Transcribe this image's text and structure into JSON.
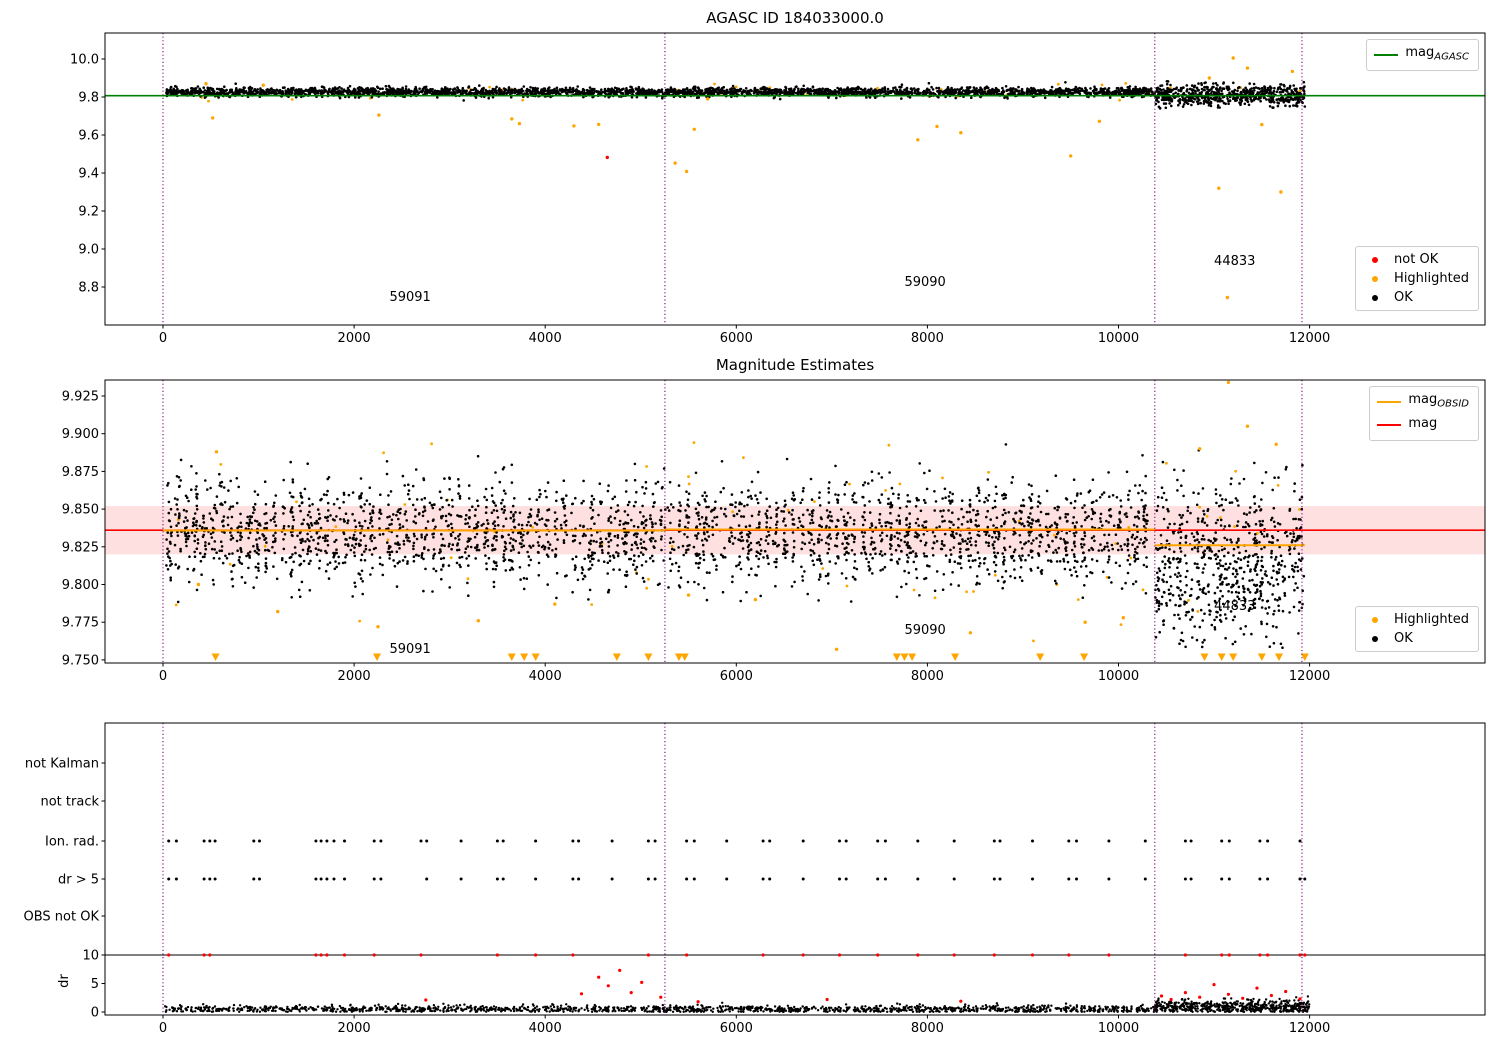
{
  "colors": {
    "ok": "#000000",
    "highlighted": "#ffa500",
    "not_ok": "#ff0000",
    "agasc_line": "#008000",
    "mag_line": "#ff0000",
    "obsid_line": "#ffa500",
    "band_color": "#ff0000",
    "band_alpha": 0.12,
    "vline": "#800080",
    "spine": "#000000"
  },
  "chart_data": [
    {
      "type": "scatter",
      "title": "AGASC ID 184033000.0",
      "xtick_vals": [
        0,
        2000,
        4000,
        6000,
        8000,
        10000,
        12000
      ],
      "xtick_labels": [
        "0",
        "2000",
        "4000",
        "6000",
        "8000",
        "10000",
        "12000"
      ],
      "ytick_vals": [
        10.0,
        9.8,
        9.6,
        9.4,
        9.2,
        9.0,
        8.8
      ],
      "ytick_labels": [
        "10.0",
        "9.8",
        "9.6",
        "9.4",
        "9.2",
        "9.0",
        "8.8"
      ],
      "xlim": [
        -630,
        13835
      ],
      "ylim": [
        8.6,
        10.14
      ],
      "agasc_mag_line": 9.807,
      "vlines": [
        0,
        5253,
        10380,
        11920
      ],
      "annotations": [
        {
          "text": "59091",
          "x": 2370,
          "y": 8.715
        },
        {
          "text": "59090",
          "x": 7760,
          "y": 8.797
        },
        {
          "text": "44833",
          "x": 11000,
          "y": 8.905
        }
      ],
      "legend_top": [
        {
          "label_main": "mag",
          "label_sub": "AGASC",
          "type": "line",
          "color": "#008000"
        }
      ],
      "legend_bottom": [
        {
          "label": "not OK",
          "type": "dot",
          "color": "#ff0000"
        },
        {
          "label": "Highlighted",
          "type": "dot",
          "color": "#ffa500"
        },
        {
          "label": "OK",
          "type": "dot",
          "color": "#000000"
        }
      ],
      "ok_series": [
        {
          "x0": 30,
          "x1": 10380,
          "n": 3000,
          "mean": 9.826,
          "std": 0.012,
          "ymin": 9.778,
          "ymax": 9.885,
          "cluster": false
        },
        {
          "x0": 10380,
          "x1": 11950,
          "n": 650,
          "mean": 9.81,
          "std": 0.028,
          "ymin": 9.74,
          "ymax": 9.96,
          "cluster": false
        }
      ],
      "highlighted_band": {
        "x0": 30,
        "x1": 11950,
        "n": 55,
        "mean": 9.824,
        "std": 0.02,
        "ymin": 9.765,
        "ymax": 9.9
      },
      "highlighted_points": [
        [
          450,
          9.87
        ],
        [
          520,
          9.69
        ],
        [
          1050,
          9.862
        ],
        [
          2260,
          9.705
        ],
        [
          3650,
          9.685
        ],
        [
          3730,
          9.66
        ],
        [
          4300,
          9.648
        ],
        [
          4560,
          9.656
        ],
        [
          5360,
          9.452
        ],
        [
          5480,
          9.408
        ],
        [
          5560,
          9.63
        ],
        [
          5700,
          9.79
        ],
        [
          7900,
          9.575
        ],
        [
          8100,
          9.645
        ],
        [
          8350,
          9.612
        ],
        [
          9500,
          9.49
        ],
        [
          9800,
          9.672
        ],
        [
          10950,
          9.9
        ],
        [
          11050,
          9.32
        ],
        [
          11200,
          10.005
        ],
        [
          11140,
          8.745
        ],
        [
          11350,
          9.952
        ],
        [
          11500,
          9.655
        ],
        [
          11700,
          9.3
        ],
        [
          11820,
          9.935
        ]
      ],
      "not_ok_points": [
        [
          4650,
          9.482
        ]
      ]
    },
    {
      "type": "scatter",
      "title": "Magnitude Estimates",
      "xtick_vals": [
        0,
        2000,
        4000,
        6000,
        8000,
        10000,
        12000
      ],
      "xtick_labels": [
        "0",
        "2000",
        "4000",
        "6000",
        "8000",
        "10000",
        "12000"
      ],
      "ytick_vals": [
        9.925,
        9.9,
        9.875,
        9.85,
        9.825,
        9.8,
        9.775,
        9.75
      ],
      "ytick_labels": [
        "9.925",
        "9.900",
        "9.875",
        "9.850",
        "9.825",
        "9.800",
        "9.775",
        "9.750"
      ],
      "xlim": [
        -630,
        13835
      ],
      "ylim": [
        9.7478,
        9.9356
      ],
      "mag_line": 9.836,
      "band": {
        "lo": 9.82,
        "hi": 9.852
      },
      "obsid_segments": [
        {
          "x0": 0,
          "x1": 5253,
          "y": 9.8358
        },
        {
          "x0": 5253,
          "x1": 10380,
          "y": 9.8365
        },
        {
          "x0": 10380,
          "x1": 11950,
          "y": 9.826
        }
      ],
      "vlines": [
        0,
        5253,
        10380,
        11920
      ],
      "annotations": [
        {
          "text": "59091",
          "x": 2370,
          "y": 9.7535
        },
        {
          "text": "59090",
          "x": 7760,
          "y": 9.766
        },
        {
          "text": "44833",
          "x": 11000,
          "y": 9.7815
        }
      ],
      "legend_top": [
        {
          "label_main": "mag",
          "label_sub": "OBSID",
          "type": "line",
          "color": "#ffa500"
        },
        {
          "label_main": "mag",
          "label_sub": "",
          "type": "line",
          "color": "#ff0000"
        }
      ],
      "legend_bottom": [
        {
          "label": "Highlighted",
          "type": "dot",
          "color": "#ffa500"
        },
        {
          "label": "OK",
          "type": "dot",
          "color": "#000000"
        }
      ],
      "ok_series": [
        {
          "x0": 20,
          "x1": 10380,
          "n": 2700,
          "mean": 9.8345,
          "std": 0.0175,
          "ymin": 9.788,
          "ymax": 9.893,
          "cluster": true,
          "cluster_spacing": 92,
          "cluster_sigma": 19
        },
        {
          "x0": 10380,
          "x1": 11950,
          "n": 650,
          "mean": 9.812,
          "std": 0.027,
          "ymin": 9.758,
          "ymax": 9.9,
          "cluster": true,
          "cluster_spacing": 60,
          "cluster_sigma": 16
        }
      ],
      "highlighted_band": {
        "x0": 20,
        "x1": 11950,
        "n": 70,
        "mean": 9.83,
        "std": 0.035,
        "ymin": 9.762,
        "ymax": 9.9
      },
      "highlighted_points": [
        [
          560,
          9.888
        ],
        [
          370,
          9.8
        ],
        [
          11150,
          9.934
        ],
        [
          7050,
          9.757
        ],
        [
          2250,
          9.772
        ],
        [
          5500,
          9.793
        ],
        [
          8450,
          9.768
        ],
        [
          9650,
          9.775
        ],
        [
          10050,
          9.778
        ],
        [
          6200,
          9.79
        ],
        [
          1200,
          9.782
        ],
        [
          3300,
          9.776
        ],
        [
          4100,
          9.787
        ],
        [
          11650,
          9.893
        ],
        [
          11350,
          9.905
        ],
        [
          10850,
          9.89
        ]
      ],
      "triangles_x": [
        550,
        2240,
        3650,
        3780,
        3900,
        4750,
        5080,
        5400,
        5460,
        7680,
        7760,
        7840,
        8290,
        9180,
        9640,
        10900,
        11080,
        11200,
        11500,
        11680,
        11950
      ],
      "not_ok_points": []
    },
    {
      "type": "scatter",
      "title": "",
      "xtick_vals": [
        0,
        2000,
        4000,
        6000,
        8000,
        10000,
        12000
      ],
      "xtick_labels": [
        "0",
        "2000",
        "4000",
        "6000",
        "8000",
        "10000",
        "12000"
      ],
      "rows": [
        "not Kalman",
        "not track",
        "Ion. rad.",
        "dr > 5",
        "OBS not OK"
      ],
      "dr_axis_label": "dr",
      "dr_tick_vals": [
        10,
        5,
        0
      ],
      "dr_tick_labels": [
        "10",
        "5",
        "0"
      ],
      "dr_cap_line": 10,
      "vlines": [
        0,
        5253,
        10380,
        11920
      ],
      "ion_rad_x": [
        60,
        140,
        430,
        490,
        545,
        950,
        1010,
        1600,
        1655,
        1715,
        1790,
        1900,
        2210,
        2280,
        2700,
        2760,
        3120,
        3500,
        3560,
        3900,
        4290,
        4350,
        4700,
        5080,
        5150,
        5480,
        5560,
        5900,
        6280,
        6350,
        6700,
        7080,
        7150,
        7480,
        7560,
        7900,
        8280,
        8700,
        8760,
        9100,
        9480,
        9560,
        9900,
        10280,
        10700,
        10760,
        11080,
        11160,
        11480,
        11560,
        11900
      ],
      "dr_gt5_x": [
        60,
        140,
        430,
        490,
        545,
        950,
        1010,
        1600,
        1655,
        1715,
        1790,
        1900,
        2210,
        2280,
        2760,
        3120,
        3500,
        3560,
        3900,
        4290,
        4350,
        4700,
        5080,
        5150,
        5480,
        5560,
        5900,
        6280,
        6350,
        6700,
        7080,
        7150,
        7480,
        7560,
        7900,
        8280,
        8700,
        8760,
        9100,
        9480,
        9560,
        9900,
        10280,
        10700,
        10760,
        11080,
        11160,
        11480,
        11560,
        11900,
        11950
      ],
      "red_at_cap_x": [
        60,
        430,
        490,
        1600,
        1655,
        1715,
        1900,
        2210,
        2700,
        3500,
        3900,
        4290,
        5080,
        5480,
        6280,
        6700,
        7080,
        7480,
        7900,
        8280,
        8700,
        9100,
        9480,
        9900,
        10700,
        11080,
        11160,
        11480,
        11560,
        11900,
        11950
      ],
      "red_mid_points": [
        [
          2750,
          2.1
        ],
        [
          4380,
          3.2
        ],
        [
          4560,
          6.1
        ],
        [
          4660,
          4.6
        ],
        [
          4780,
          7.3
        ],
        [
          4900,
          3.4
        ],
        [
          5010,
          5.2
        ],
        [
          5210,
          2.6
        ],
        [
          5600,
          1.8
        ],
        [
          6950,
          2.2
        ],
        [
          8350,
          1.9
        ],
        [
          10450,
          2.8
        ],
        [
          10550,
          2.2
        ],
        [
          10700,
          3.4
        ],
        [
          10850,
          2.6
        ],
        [
          11000,
          4.8
        ],
        [
          11150,
          3.1
        ],
        [
          11300,
          2.4
        ],
        [
          11450,
          4.2
        ],
        [
          11600,
          2.9
        ],
        [
          11750,
          3.6
        ],
        [
          11900,
          2.3
        ]
      ],
      "dr_series": [
        {
          "x0": 20,
          "x1": 10380,
          "n": 1400,
          "mean": 0.5,
          "std": 0.35,
          "max": 2.4
        },
        {
          "x0": 10380,
          "x1": 12000,
          "n": 520,
          "mean": 0.9,
          "std": 0.62,
          "max": 3.4
        }
      ]
    }
  ]
}
